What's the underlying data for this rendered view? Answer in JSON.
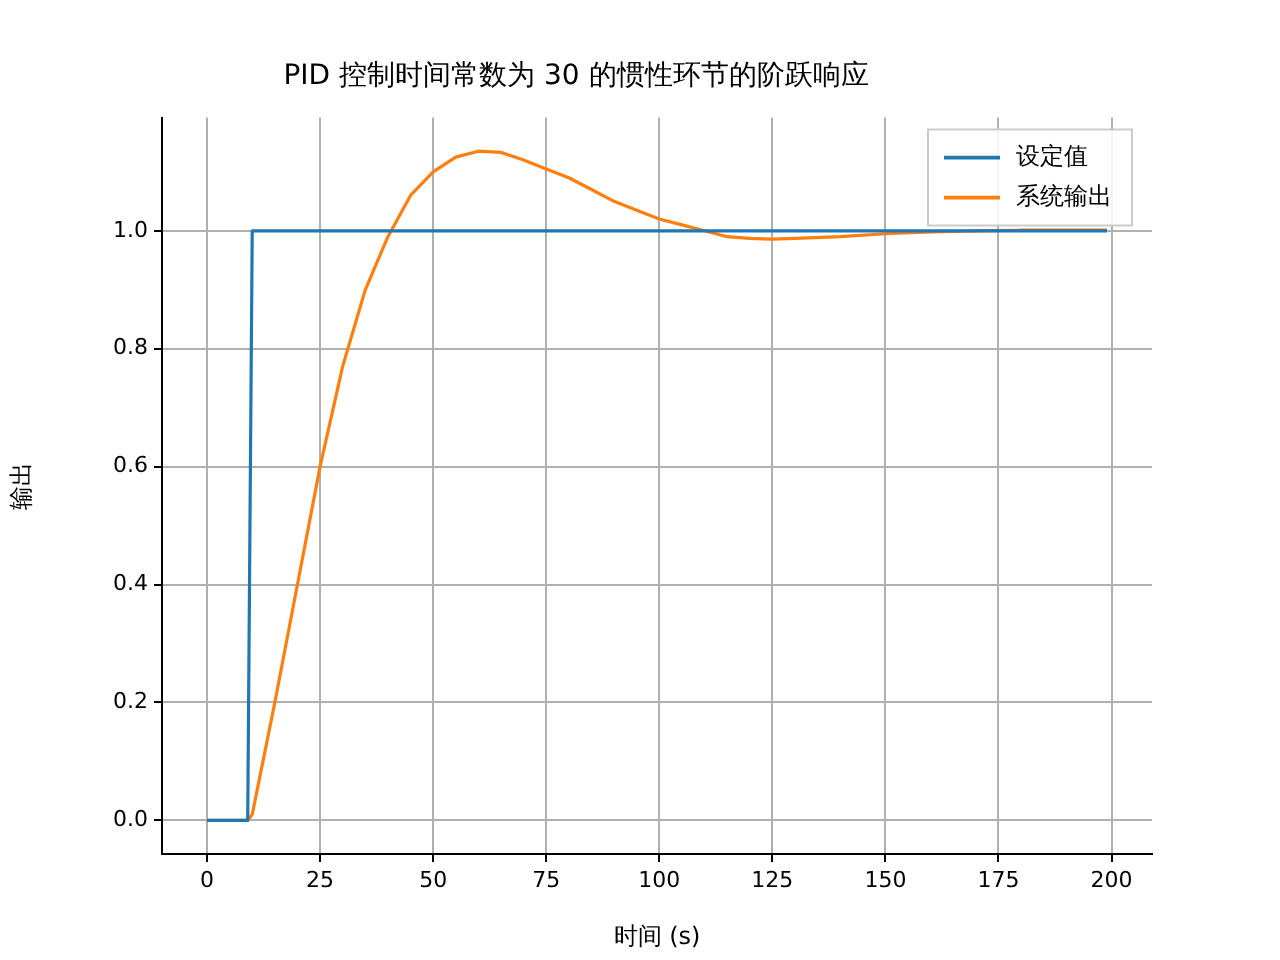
{
  "chart_data": {
    "type": "line",
    "title": "PID 控制时间常数为 30 的惯性环节的阶跃响应",
    "xlabel": "时间 (s)",
    "ylabel": "输出",
    "xlim": [
      -9.95,
      208.95
    ],
    "xticks": [
      0,
      25,
      50,
      75,
      100,
      125,
      150,
      175,
      200
    ],
    "ylim": [
      -0.057,
      1.192
    ],
    "yticks": [
      {
        "value": 0,
        "label": "0.0"
      },
      {
        "value": 0.2,
        "label": "0.2"
      },
      {
        "value": 0.4,
        "label": "0.4"
      },
      {
        "value": 0.6,
        "label": "0.6"
      },
      {
        "value": 0.8,
        "label": "0.8"
      },
      {
        "value": 1,
        "label": "1.0"
      }
    ],
    "grid": true,
    "legend": "top right",
    "marker": "none",
    "line_style": "solid",
    "series": [
      {
        "name": "设定值",
        "color": "#1f77b4",
        "x": [
          0,
          9,
          10,
          199
        ],
        "values": [
          0,
          0,
          1,
          1
        ]
      },
      {
        "name": "系统输出",
        "color": "#ff7f0e",
        "x": [
          0,
          9,
          10,
          15,
          20,
          25,
          30,
          35,
          40,
          45,
          50,
          55,
          60,
          65,
          70,
          75,
          80,
          85,
          90,
          95,
          100,
          105,
          110,
          115,
          120,
          125,
          130,
          140,
          150,
          160,
          170,
          180,
          190,
          199
        ],
        "values": [
          0,
          0,
          0.01,
          0.2,
          0.4,
          0.6,
          0.77,
          0.9,
          0.99,
          1.06,
          1.1,
          1.125,
          1.135,
          1.133,
          1.12,
          1.105,
          1.09,
          1.07,
          1.05,
          1.035,
          1.02,
          1.01,
          1.0,
          0.99,
          0.987,
          0.986,
          0.987,
          0.99,
          0.995,
          0.998,
          1.0,
          1.001,
          1.001,
          1.001
        ]
      }
    ]
  }
}
